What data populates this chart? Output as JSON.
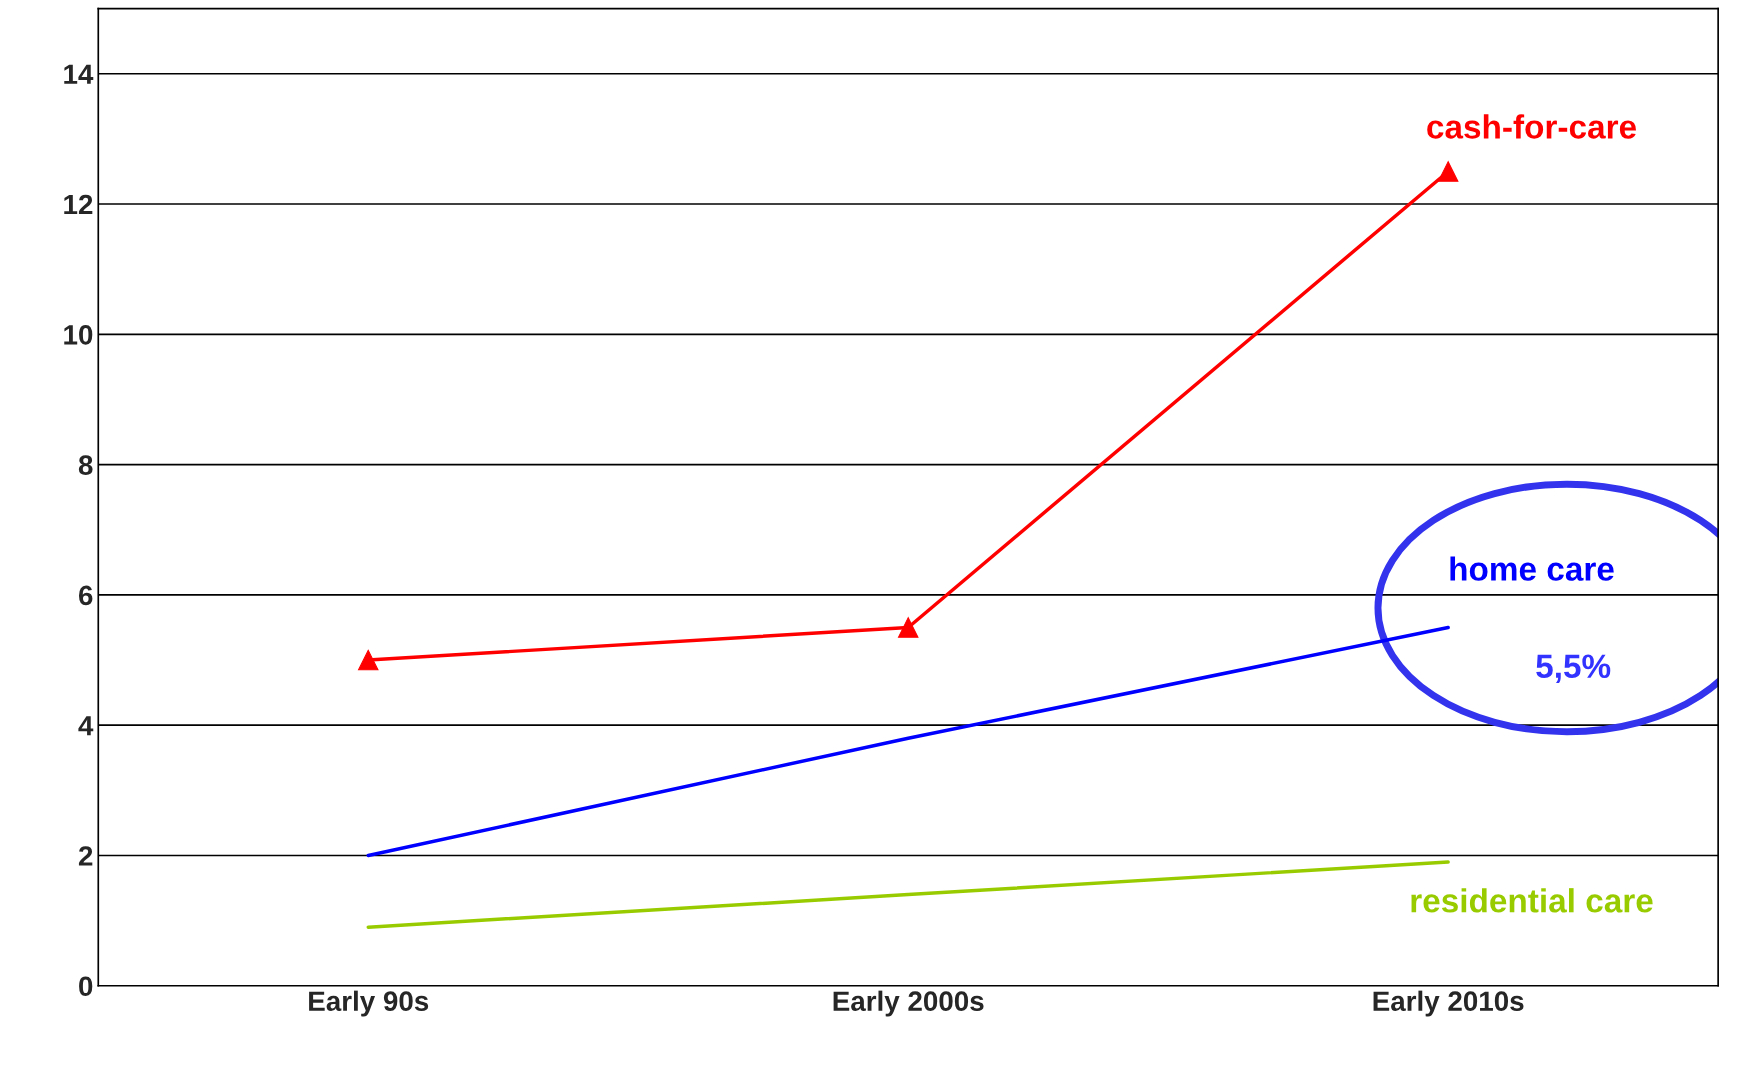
{
  "chart_data": {
    "type": "line",
    "categories": [
      "Early 90s",
      "Early 2000s",
      "Early 2010s"
    ],
    "series": [
      {
        "name": "cash-for-care",
        "color": "#ff0000",
        "values": [
          5.0,
          5.5,
          12.5
        ],
        "marker": "triangle"
      },
      {
        "name": "home care",
        "color": "#0000ff",
        "values": [
          2.0,
          3.8,
          5.5
        ],
        "marker": "none"
      },
      {
        "name": "residential care",
        "color": "#99cc00",
        "values": [
          0.9,
          1.4,
          1.9
        ],
        "marker": "none"
      }
    ],
    "ylim": [
      0,
      15
    ],
    "yticks": [
      0,
      2,
      4,
      6,
      8,
      10,
      12,
      14
    ],
    "grid": "y",
    "legend": false,
    "annotations": [
      {
        "text": "5,5%",
        "x": "Early 2010s",
        "y": 5.5
      }
    ]
  }
}
